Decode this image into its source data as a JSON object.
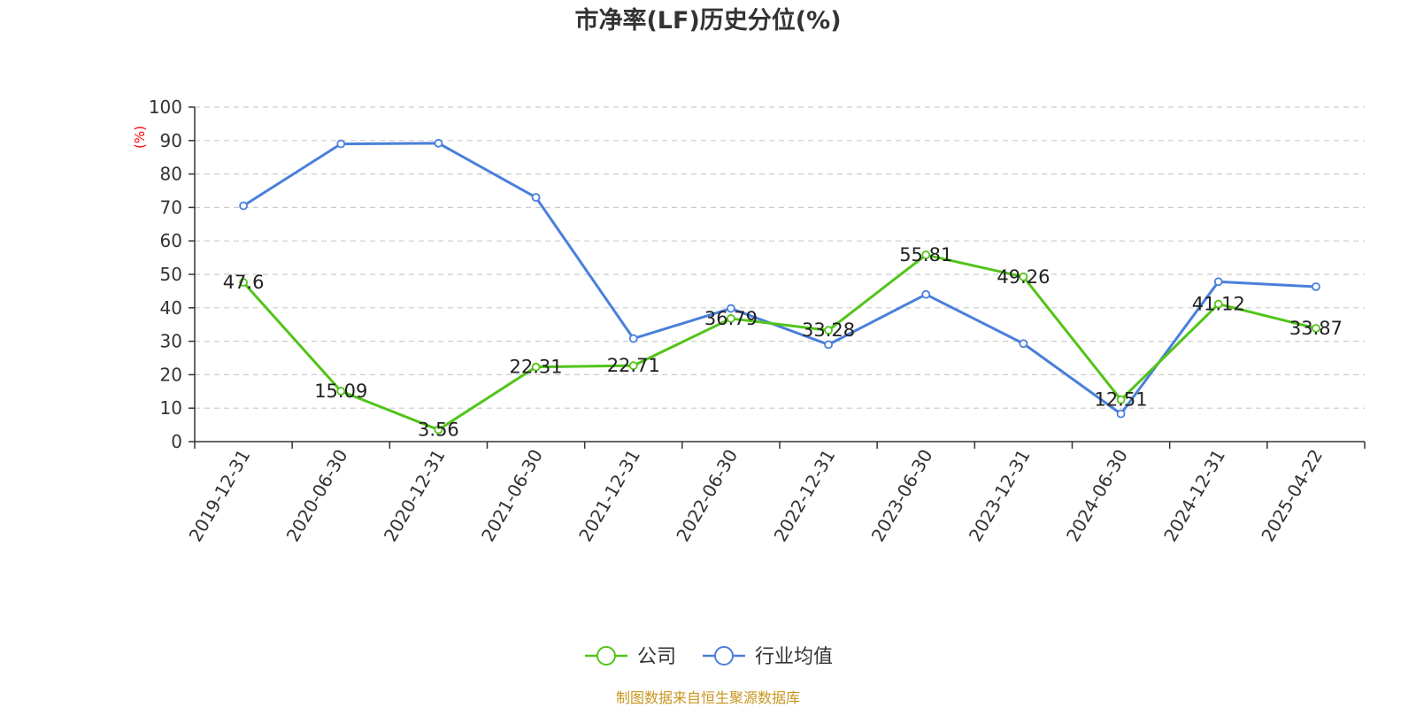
{
  "chart_data": {
    "type": "line",
    "title": "市净率(LF)历史分位(%)",
    "ylabel": "(%)",
    "xlabel": "",
    "ylim": [
      0,
      100
    ],
    "yticks": [
      0,
      10,
      20,
      30,
      40,
      50,
      60,
      70,
      80,
      90,
      100
    ],
    "grid": true,
    "legend_position": "bottom",
    "categories": [
      "2019-12-31",
      "2020-06-30",
      "2020-12-31",
      "2021-06-30",
      "2021-12-31",
      "2022-06-30",
      "2022-12-31",
      "2023-06-30",
      "2023-12-31",
      "2024-06-30",
      "2024-12-31",
      "2025-04-22"
    ],
    "series": [
      {
        "name": "公司",
        "color": "#52c41a",
        "values": [
          47.6,
          15.09,
          3.56,
          22.31,
          22.71,
          36.79,
          33.28,
          55.81,
          49.26,
          12.51,
          41.12,
          33.87
        ],
        "labels": [
          "47.6",
          "15.09",
          "3.56",
          "22.31",
          "22.71",
          "36.79",
          "33.28",
          "55.81",
          "49.26",
          "12.51",
          "41.12",
          "33.87"
        ]
      },
      {
        "name": "行业均值",
        "color": "#4a7fdb",
        "values": [
          70.5,
          89,
          89.2,
          73,
          30.8,
          39.8,
          29,
          44,
          29.3,
          8.3,
          47.8,
          46.3
        ]
      }
    ],
    "source": "制图数据来自恒生聚源数据库"
  }
}
